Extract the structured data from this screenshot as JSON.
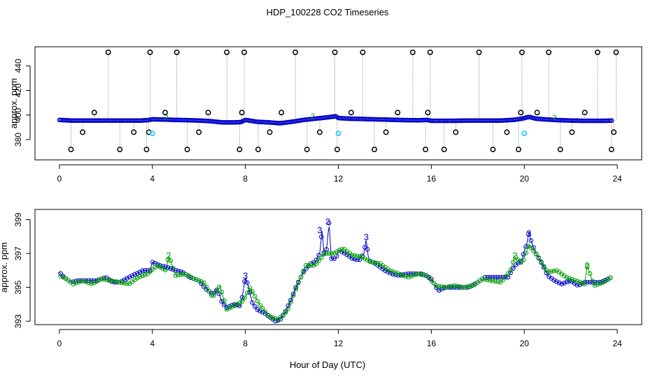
{
  "title": "HDP_100228  CO2 Timeseries",
  "xlabel": "Hour of Day (UTC)",
  "colors": {
    "black": "#000000",
    "blue": "#0000cc",
    "green": "#00a000",
    "cyan": "#33ccff",
    "gray": "#999999"
  },
  "chart_data": [
    {
      "type": "scatter",
      "panel": "top",
      "ylabel": "approx. ppm",
      "xlim": [
        -1.05,
        25.05
      ],
      "ylim": [
        363.5,
        455.5
      ],
      "xticks": [
        0,
        4,
        8,
        12,
        16,
        20,
        24
      ],
      "yticks": [
        380,
        400,
        420,
        440
      ],
      "baseline_series": {
        "name": "CO2 (blue points)",
        "x": [
          0.0,
          0.5,
          1.0,
          1.5,
          2.0,
          2.5,
          3.0,
          3.5,
          3.8,
          4.0,
          4.5,
          5.0,
          5.5,
          6.0,
          6.5,
          7.0,
          7.5,
          7.8,
          8.0,
          8.5,
          9.0,
          9.5,
          10.0,
          10.5,
          11.0,
          11.5,
          11.9,
          12.0,
          12.5,
          13.0,
          13.5,
          14.0,
          14.5,
          15.0,
          15.5,
          15.8,
          16.0,
          16.5,
          17.0,
          17.5,
          18.0,
          18.5,
          19.0,
          19.5,
          19.9,
          20.0,
          20.2,
          20.5,
          21.0,
          21.5,
          22.0,
          22.5,
          23.0,
          23.5,
          23.8
        ],
        "y": [
          396,
          395.5,
          395.5,
          395.5,
          395.5,
          395.5,
          395.5,
          395.5,
          395.8,
          396.5,
          396.3,
          396,
          395.8,
          395.5,
          395,
          394,
          394,
          394.2,
          396,
          394.5,
          394,
          393.3,
          394.5,
          396,
          397,
          398,
          399,
          397.5,
          397,
          396.8,
          396.5,
          396.3,
          396,
          395.8,
          395.7,
          396,
          395.3,
          395.3,
          395.3,
          395.5,
          395.5,
          395.5,
          395.5,
          396,
          397,
          397.5,
          398.5,
          397,
          396.3,
          395.8,
          395.5,
          395.3,
          395.3,
          395.3,
          395.5
        ]
      },
      "outlier_series": {
        "name": "flagged samples (black circles)",
        "x": [
          0.5,
          1.0,
          1.5,
          2.1,
          2.6,
          3.2,
          3.75,
          3.85,
          3.9,
          4.55,
          5.05,
          5.5,
          6.0,
          6.4,
          7.2,
          7.75,
          7.85,
          7.95,
          8.55,
          9.05,
          9.55,
          10.15,
          10.65,
          11.2,
          11.85,
          11.95,
          12.55,
          13.05,
          13.55,
          14.05,
          14.55,
          15.2,
          15.75,
          15.85,
          15.95,
          16.55,
          17.05,
          18.05,
          18.65,
          19.25,
          19.75,
          19.85,
          19.9,
          20.55,
          21.05,
          21.55,
          22.05,
          22.6,
          23.15,
          23.75,
          23.85,
          23.95
        ],
        "y": [
          372,
          386,
          402,
          451,
          372,
          386,
          372,
          386,
          451,
          402,
          451,
          372,
          386,
          402,
          451,
          372,
          402,
          451,
          372,
          386,
          402,
          451,
          372,
          386,
          451,
          372,
          402,
          451,
          372,
          386,
          402,
          451,
          372,
          402,
          451,
          372,
          386,
          451,
          372,
          386,
          372,
          402,
          451,
          402,
          451,
          372,
          386,
          402,
          451,
          372,
          386,
          451
        ]
      },
      "cyan_points": {
        "x": [
          4.0,
          12.0,
          20.0
        ],
        "y": [
          385,
          385,
          385
        ]
      },
      "green_labels": {
        "x": [
          4.6,
          10.9,
          21.3
        ],
        "y": [
          396,
          397,
          396
        ],
        "labels": [
          "2",
          "2",
          "2"
        ]
      }
    },
    {
      "type": "line",
      "panel": "bottom",
      "ylabel": "approx. ppm",
      "xlim": [
        -1.05,
        25.05
      ],
      "ylim": [
        392.8,
        399.6
      ],
      "xticks": [
        0,
        4,
        8,
        12,
        16,
        20,
        24
      ],
      "yticks": [
        393,
        395,
        397,
        399
      ],
      "series": [
        {
          "name": "blue",
          "x": [
            0.0,
            0.2,
            0.5,
            0.8,
            1.0,
            1.3,
            1.6,
            2.0,
            2.3,
            2.6,
            3.0,
            3.3,
            3.6,
            3.9,
            4.0,
            4.3,
            4.6,
            5.0,
            5.3,
            5.6,
            6.0,
            6.3,
            6.6,
            6.8,
            7.0,
            7.2,
            7.5,
            7.8,
            8.0,
            8.1,
            8.3,
            8.5,
            8.8,
            9.0,
            9.3,
            9.5,
            9.7,
            10.0,
            10.2,
            10.5,
            10.8,
            11.0,
            11.2,
            11.3,
            11.4,
            11.5,
            11.6,
            11.7,
            11.9,
            12.0,
            12.3,
            12.6,
            12.9,
            13.1,
            13.2,
            13.3,
            13.6,
            14.0,
            14.3,
            14.6,
            15.0,
            15.3,
            15.6,
            15.9,
            16.0,
            16.3,
            16.6,
            17.0,
            17.3,
            17.6,
            18.0,
            18.3,
            18.6,
            19.0,
            19.3,
            19.6,
            19.9,
            20.0,
            20.1,
            20.2,
            20.3,
            20.5,
            20.8,
            21.0,
            21.3,
            21.6,
            22.0,
            22.3,
            22.6,
            23.0,
            23.3,
            23.6,
            23.75
          ],
          "y": [
            395.9,
            395.6,
            395.3,
            395.4,
            395.4,
            395.4,
            395.4,
            395.6,
            395.3,
            395.3,
            395.6,
            395.8,
            396.0,
            396.0,
            396.5,
            396.3,
            396.2,
            396.0,
            395.9,
            395.6,
            395.4,
            394.9,
            394.6,
            394.9,
            394.1,
            393.8,
            394.0,
            393.9,
            395.6,
            395.2,
            394.1,
            393.7,
            393.5,
            393.3,
            393.0,
            393.1,
            393.5,
            394.4,
            395.1,
            395.9,
            396.4,
            396.5,
            397.0,
            398.4,
            396.7,
            397.3,
            398.8,
            396.7,
            396.7,
            397.2,
            397.0,
            396.7,
            396.6,
            397.0,
            397.9,
            396.6,
            396.4,
            396.0,
            395.8,
            395.7,
            395.8,
            395.8,
            395.8,
            395.6,
            395.5,
            394.8,
            395.0,
            395.0,
            395.0,
            395.0,
            395.3,
            395.6,
            395.6,
            395.6,
            395.6,
            396.3,
            396.6,
            397.2,
            397.5,
            398.3,
            397.7,
            397.0,
            396.3,
            395.7,
            395.4,
            395.2,
            395.4,
            395.1,
            395.3,
            395.3,
            395.3,
            395.5,
            395.6
          ]
        },
        {
          "name": "green",
          "x": [
            0.0,
            0.3,
            0.6,
            1.0,
            1.4,
            1.8,
            2.2,
            2.6,
            3.0,
            3.4,
            3.8,
            4.2,
            4.6,
            4.7,
            5.0,
            5.4,
            5.8,
            6.2,
            6.6,
            6.9,
            7.2,
            7.5,
            7.9,
            8.2,
            8.6,
            9.0,
            9.4,
            9.8,
            10.2,
            10.6,
            11.0,
            11.4,
            11.8,
            12.2,
            12.6,
            13.0,
            13.4,
            13.8,
            14.2,
            14.6,
            15.0,
            15.4,
            15.8,
            16.2,
            16.6,
            17.0,
            17.4,
            17.8,
            18.2,
            18.6,
            19.0,
            19.4,
            19.6,
            19.9,
            20.2,
            20.6,
            21.0,
            21.4,
            21.8,
            22.2,
            22.6,
            22.7,
            23.0,
            23.4,
            23.75
          ],
          "y": [
            395.7,
            395.5,
            395.2,
            395.4,
            395.2,
            395.5,
            395.4,
            395.3,
            395.2,
            395.6,
            395.8,
            396.3,
            396.0,
            396.9,
            395.7,
            395.8,
            395.5,
            395.3,
            394.4,
            395.1,
            393.7,
            393.9,
            394.2,
            395.0,
            394.0,
            393.3,
            393.1,
            393.6,
            395.0,
            396.3,
            396.3,
            397.0,
            397.0,
            397.3,
            396.9,
            396.8,
            396.5,
            396.4,
            396.0,
            395.8,
            395.6,
            395.8,
            395.7,
            395.1,
            395.0,
            395.1,
            395.0,
            395.1,
            395.5,
            395.4,
            395.3,
            396.0,
            396.8,
            396.4,
            397.5,
            396.8,
            395.9,
            396.0,
            395.6,
            395.4,
            395.2,
            396.3,
            395.1,
            395.3,
            395.6
          ]
        }
      ],
      "highlight_labels": [
        {
          "x": 11.2,
          "y": 398.4,
          "text": "3",
          "color": "blue"
        },
        {
          "x": 11.55,
          "y": 398.9,
          "text": "3",
          "color": "blue"
        },
        {
          "x": 13.2,
          "y": 398.0,
          "text": "3",
          "color": "blue"
        },
        {
          "x": 8.0,
          "y": 395.7,
          "text": "3",
          "color": "blue"
        },
        {
          "x": 20.2,
          "y": 398.2,
          "text": "3",
          "color": "blue"
        },
        {
          "x": 4.7,
          "y": 396.9,
          "text": "2",
          "color": "green"
        },
        {
          "x": 19.6,
          "y": 396.9,
          "text": "2",
          "color": "green"
        },
        {
          "x": 22.7,
          "y": 396.3,
          "text": "2",
          "color": "green"
        }
      ]
    }
  ]
}
